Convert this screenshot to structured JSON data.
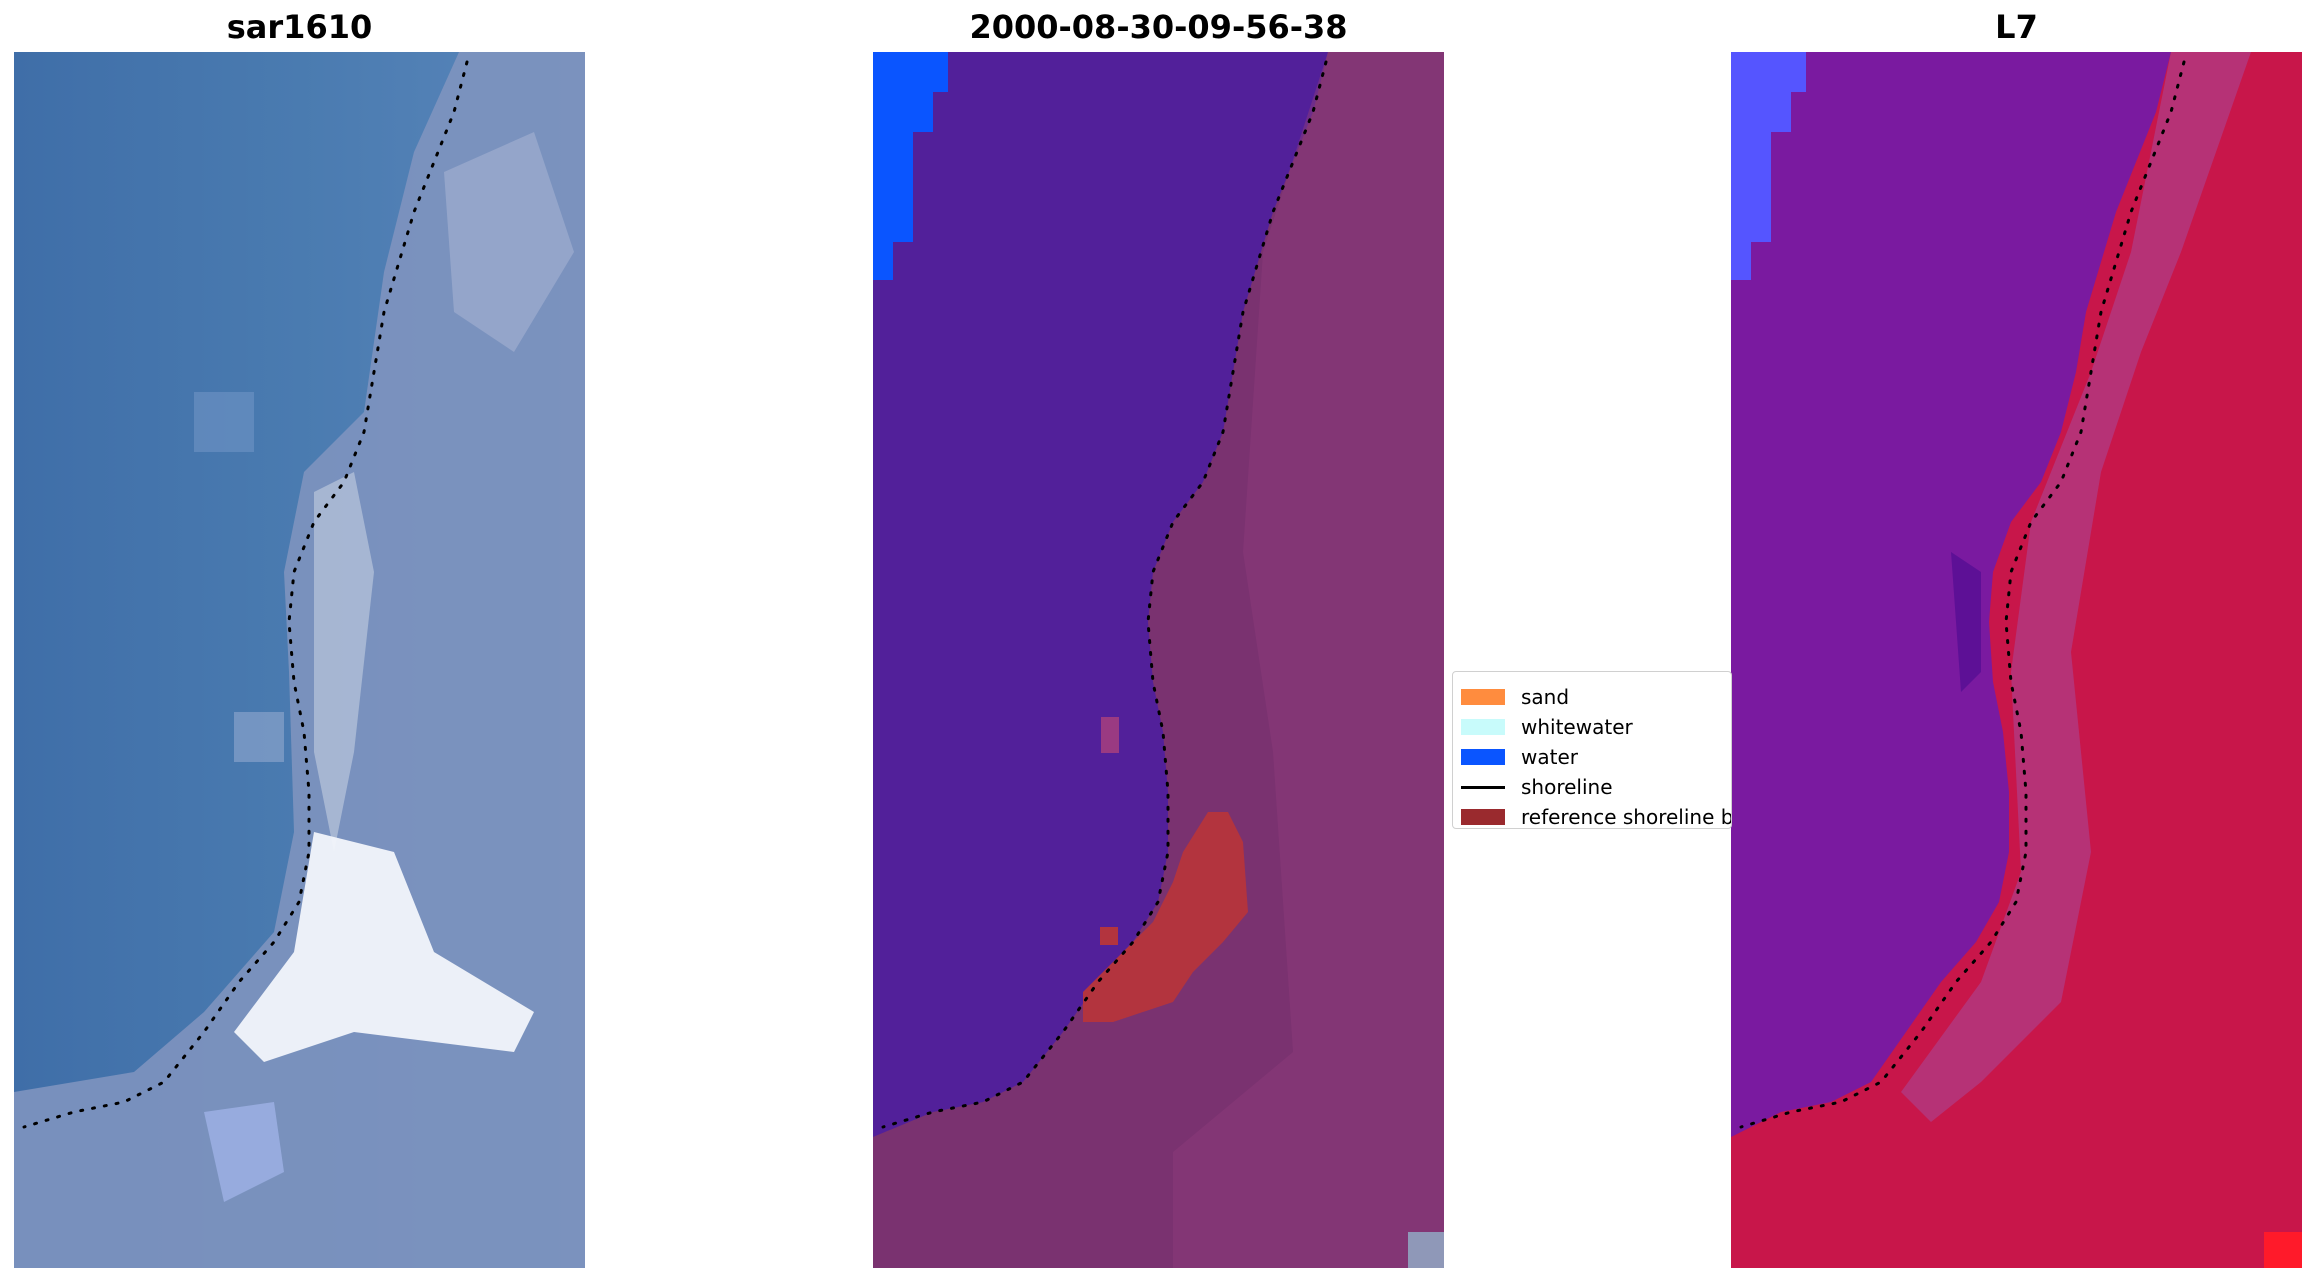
{
  "panels": [
    {
      "id": "sar",
      "title": "sar1610"
    },
    {
      "id": "class",
      "title": "2000-08-30-09-56-38"
    },
    {
      "id": "index",
      "title": "L7"
    }
  ],
  "legend": {
    "items": [
      {
        "label": "sand",
        "color": "#ff8c3e",
        "kind": "patch"
      },
      {
        "label": "whitewater",
        "color": "#c8fbfb",
        "kind": "patch"
      },
      {
        "label": "water",
        "color": "#0a55ff",
        "kind": "patch"
      },
      {
        "label": "shoreline",
        "color": "#000000",
        "kind": "line"
      },
      {
        "label": "reference shoreline buffer",
        "color": "#9a2a2e",
        "kind": "patch"
      }
    ]
  },
  "colors": {
    "rgb_water": "#4a74aa",
    "rgb_land": "#7e93bf",
    "rgb_bright": "#f4f7fb",
    "class_water": "#52209a",
    "class_land": "#7a3270",
    "class_buffer": "#b3343e",
    "class_water_patch": "#0a55ff",
    "index_land": "#c8164a",
    "index_water": "#7a1aa0",
    "index_water_patch": "#5555ff"
  }
}
